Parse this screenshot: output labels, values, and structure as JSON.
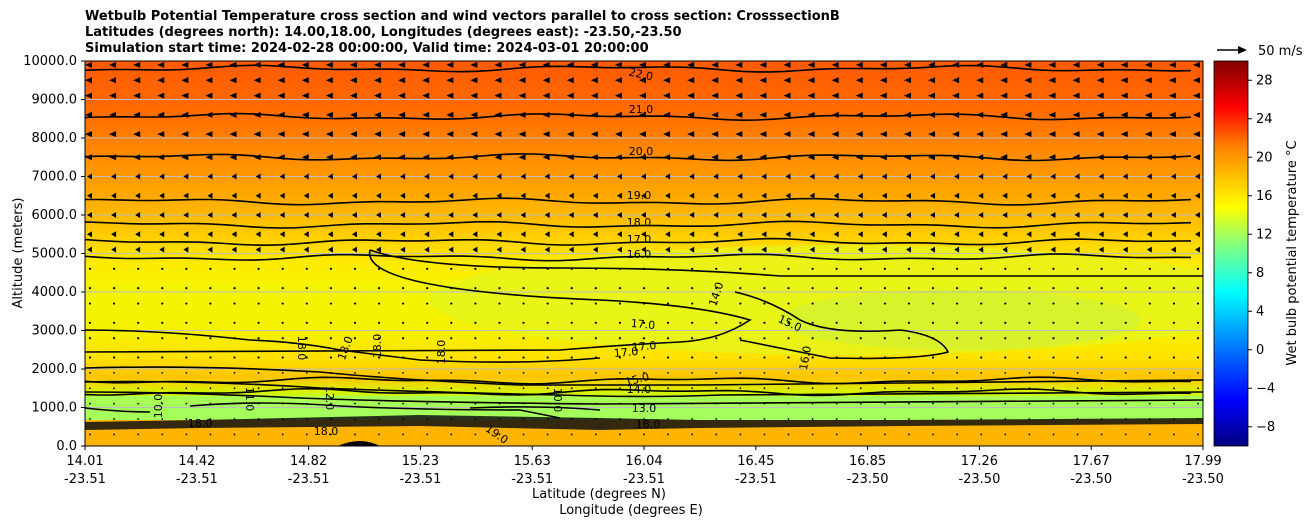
{
  "title": {
    "line1": "Wetbulb Potential Temperature cross section and wind vectors parallel to cross section: CrosssectionB",
    "line2": "Latitudes (degrees north): 14.00,18.00, Longitudes (degrees east): -23.50,-23.50",
    "line3": "Simulation start time: 2024-02-28 00:00:00, Valid time: 2024-03-01 20:00:00"
  },
  "chart_data": {
    "type": "heatmap",
    "title": "Wetbulb Potential Temperature cross section and wind vectors parallel to cross section: CrosssectionB",
    "xlabel_lat": "Latitude (degrees N)",
    "xlabel_lon": "Longitude (degrees E)",
    "ylabel": "Altitude (meters)",
    "ylim": [
      0,
      10000
    ],
    "y_ticks": [
      "0.0",
      "1000.0",
      "2000.0",
      "3000.0",
      "4000.0",
      "5000.0",
      "6000.0",
      "7000.0",
      "8000.0",
      "9000.0",
      "10000.0"
    ],
    "x_ticks_lat": [
      "14.01",
      "14.42",
      "14.82",
      "15.23",
      "15.63",
      "16.04",
      "16.45",
      "16.85",
      "17.26",
      "17.67",
      "17.99"
    ],
    "x_ticks_lon": [
      "-23.51",
      "-23.51",
      "-23.51",
      "-23.51",
      "-23.51",
      "-23.51",
      "-23.51",
      "-23.50",
      "-23.50",
      "-23.50",
      "-23.50"
    ],
    "colorbar": {
      "label": "Wet bulb potential temperature °C",
      "range": [
        -10,
        30
      ],
      "ticks": [
        "−8",
        "−4",
        "0",
        "4",
        "8",
        "12",
        "16",
        "20",
        "24",
        "28"
      ]
    },
    "wind_key": "50 m/s",
    "grid": true,
    "contour_levels": [
      {
        "label": "22.0",
        "altitude": 9800
      },
      {
        "label": "21.0",
        "altitude": 8550
      },
      {
        "label": "20.0",
        "altitude": 7500
      },
      {
        "label": "19.0",
        "altitude": 6350
      },
      {
        "label": "18.0",
        "altitude": 5750
      },
      {
        "label": "17.0",
        "altitude": 5300
      },
      {
        "label": "16.0",
        "altitude": 4900
      },
      {
        "label": "15.0",
        "altitude": 1700
      },
      {
        "label": "14.0",
        "altitude": 1400
      }
    ],
    "inline_contour_labels": [
      "22.0",
      "21.0",
      "20.0",
      "19.0",
      "18.0",
      "17.0",
      "16.0",
      "14.0",
      "15.0",
      "16.0",
      "17.0",
      "17.0",
      "17.0",
      "18.0",
      "18.0",
      "18.0",
      "18.0",
      "15.0",
      "14.0",
      "13.0",
      "12.0",
      "11.0",
      "10.0",
      "10.0",
      "18.0",
      "18.0",
      "19.0",
      "18.0"
    ]
  }
}
